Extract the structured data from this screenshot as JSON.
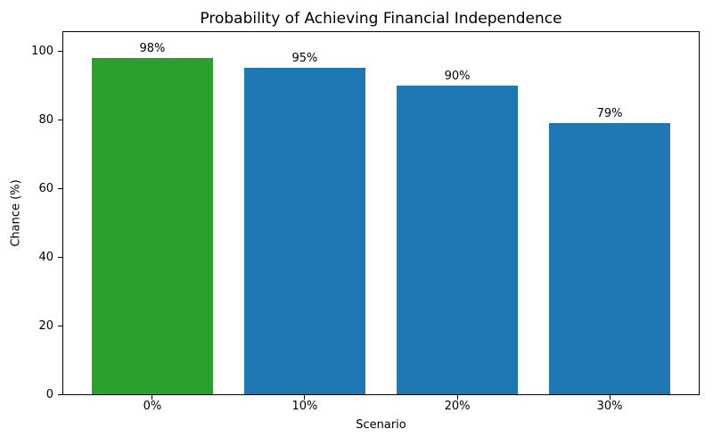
{
  "chart_data": {
    "type": "bar",
    "title": "Probability of Achieving Financial Independence",
    "xlabel": "Scenario",
    "ylabel": "Chance (%)",
    "categories": [
      "0%",
      "10%",
      "20%",
      "30%"
    ],
    "values": [
      98,
      95,
      90,
      79
    ],
    "bar_labels": [
      "98%",
      "95%",
      "90%",
      "79%"
    ],
    "bar_colors": [
      "#2ca02c",
      "#1f77b4",
      "#1f77b4",
      "#1f77b4"
    ],
    "yticks": [
      0,
      20,
      40,
      60,
      80,
      100
    ],
    "ylim": [
      0,
      106
    ],
    "grid": false,
    "legend_position": "none",
    "plot_background": "#ffffff",
    "spine_color": "#000000"
  },
  "colors": {
    "highlight_green": "#2ca02c",
    "default_blue": "#1f77b4",
    "background": "#ffffff",
    "text": "#000000"
  }
}
